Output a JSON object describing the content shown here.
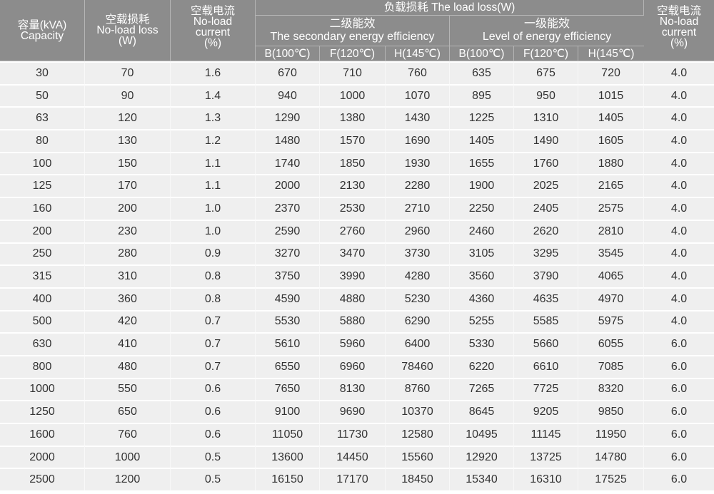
{
  "header": {
    "capacity": [
      "容量(kVA)",
      "Capacity"
    ],
    "no_load_loss": [
      "空载损耗",
      "No-load loss",
      "(W)"
    ],
    "no_load_current": [
      "空载电流",
      "No-load",
      "current",
      "(%)"
    ],
    "load_loss": "负载损耗 The load loss(W)",
    "secondary": [
      "二级能效",
      "The secondary energy efficiency"
    ],
    "first": [
      "一级能效",
      "Level of energy efficiency"
    ],
    "sub_columns": [
      "B(100℃)",
      "F(120℃)",
      "H(145℃)",
      "B(100℃)",
      "F(120℃)",
      "H(145℃)"
    ],
    "no_load_current_2": [
      "空载电流",
      "No-load",
      "current",
      "(%)"
    ]
  },
  "colors": {
    "header_bg": "#8c8c8c",
    "row_bg": "#efefef"
  },
  "rows": [
    [
      "30",
      "70",
      "1.6",
      "670",
      "710",
      "760",
      "635",
      "675",
      "720",
      "4.0"
    ],
    [
      "50",
      "90",
      "1.4",
      "940",
      "1000",
      "1070",
      "895",
      "950",
      "1015",
      "4.0"
    ],
    [
      "63",
      "120",
      "1.3",
      "1290",
      "1380",
      "1430",
      "1225",
      "1310",
      "1405",
      "4.0"
    ],
    [
      "80",
      "130",
      "1.2",
      "1480",
      "1570",
      "1690",
      "1405",
      "1490",
      "1605",
      "4.0"
    ],
    [
      "100",
      "150",
      "1.1",
      "1740",
      "1850",
      "1930",
      "1655",
      "1760",
      "1880",
      "4.0"
    ],
    [
      "125",
      "170",
      "1.1",
      "2000",
      "2130",
      "2280",
      "1900",
      "2025",
      "2165",
      "4.0"
    ],
    [
      "160",
      "200",
      "1.0",
      "2370",
      "2530",
      "2710",
      "2250",
      "2405",
      "2575",
      "4.0"
    ],
    [
      "200",
      "230",
      "1.0",
      "2590",
      "2760",
      "2960",
      "2460",
      "2620",
      "2810",
      "4.0"
    ],
    [
      "250",
      "280",
      "0.9",
      "3270",
      "3470",
      "3730",
      "3105",
      "3295",
      "3545",
      "4.0"
    ],
    [
      "315",
      "310",
      "0.8",
      "3750",
      "3990",
      "4280",
      "3560",
      "3790",
      "4065",
      "4.0"
    ],
    [
      "400",
      "360",
      "0.8",
      "4590",
      "4880",
      "5230",
      "4360",
      "4635",
      "4970",
      "4.0"
    ],
    [
      "500",
      "420",
      "0.7",
      "5530",
      "5880",
      "6290",
      "5255",
      "5585",
      "5975",
      "4.0"
    ],
    [
      "630",
      "410",
      "0.7",
      "5610",
      "5960",
      "6400",
      "5330",
      "5660",
      "6055",
      "6.0"
    ],
    [
      "800",
      "480",
      "0.7",
      "6550",
      "6960",
      "78460",
      "6220",
      "6610",
      "7085",
      "6.0"
    ],
    [
      "1000",
      "550",
      "0.6",
      "7650",
      "8130",
      "8760",
      "7265",
      "7725",
      "8320",
      "6.0"
    ],
    [
      "1250",
      "650",
      "0.6",
      "9100",
      "9690",
      "10370",
      "8645",
      "9205",
      "9850",
      "6.0"
    ],
    [
      "1600",
      "760",
      "0.6",
      "11050",
      "11730",
      "12580",
      "10495",
      "11145",
      "11950",
      "6.0"
    ],
    [
      "2000",
      "1000",
      "0.5",
      "13600",
      "14450",
      "15560",
      "12920",
      "13725",
      "14780",
      "6.0"
    ],
    [
      "2500",
      "1200",
      "0.5",
      "16150",
      "17170",
      "18450",
      "15340",
      "16310",
      "17525",
      "6.0"
    ]
  ]
}
